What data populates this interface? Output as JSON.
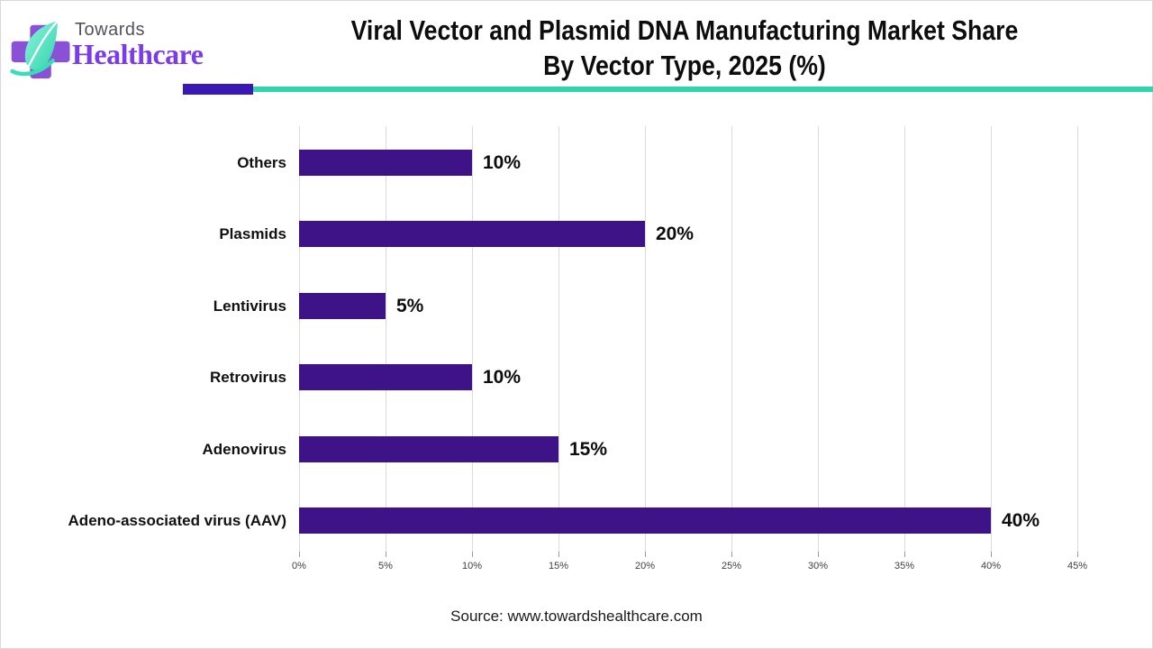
{
  "page": {
    "background": "#ffffff",
    "border_color": "#d8d8d8"
  },
  "brand": {
    "logo_alt": "Towards Healthcare logo",
    "wordmark_top": "Towards",
    "wordmark_bottom": "Healthcare",
    "colors": {
      "cross_purple": "#8a50d5",
      "leaf_mint": "#7cf0d4",
      "leaf_teal": "#2fd3ac",
      "wordmark_top_gray": "#55525a",
      "wordmark_bottom_purple": "#7b3bea"
    }
  },
  "header": {
    "title_line1": "Viral Vector and Plasmid DNA Manufacturing Market Share",
    "title_line2": "By Vector Type, 2025 (%)",
    "divider_accent_color": "#3a18b5",
    "divider_line_color": "#31d5ad"
  },
  "chart_data": {
    "type": "bar",
    "orientation": "horizontal",
    "title": "Viral Vector and Plasmid DNA Manufacturing Market Share By Vector Type, 2025 (%)",
    "categories": [
      "Others",
      "Plasmids",
      "Lentivirus",
      "Retrovirus",
      "Adenovirus",
      "Adeno-associated virus (AAV)"
    ],
    "values": [
      10,
      20,
      5,
      10,
      15,
      40
    ],
    "value_labels": [
      "10%",
      "20%",
      "5%",
      "10%",
      "15%",
      "40%"
    ],
    "bar_color": "#3d1387",
    "xlim": [
      0,
      45
    ],
    "x_tick_values": [
      0,
      5,
      10,
      15,
      20,
      25,
      30,
      35,
      40,
      45
    ],
    "x_tick_labels": [
      "0%",
      "5%",
      "10%",
      "15%",
      "20%",
      "25%",
      "30%",
      "35%",
      "40%",
      "45%"
    ],
    "gridlines": true,
    "gridline_color": "#d9d9d9",
    "legend": false
  },
  "footer": {
    "source_text": "Source: www.towardshealthcare.com"
  }
}
